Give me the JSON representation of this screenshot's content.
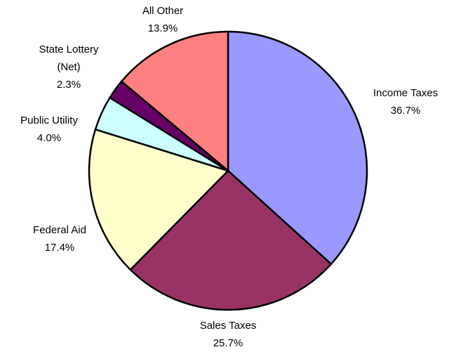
{
  "chart_data": {
    "type": "pie",
    "categories": [
      "Income Taxes",
      "Sales Taxes",
      "Federal Aid",
      "Public Utility",
      "State Lottery (Net)",
      "All Other"
    ],
    "values": [
      36.7,
      25.7,
      17.4,
      4.0,
      2.3,
      13.9
    ],
    "value_labels": [
      "36.7%",
      "25.7%",
      "17.4%",
      "4.0%",
      "2.3%",
      "13.9%"
    ],
    "colors": [
      "#9999ff",
      "#993366",
      "#ffffcc",
      "#ccffff",
      "#660066",
      "#ff8080"
    ]
  }
}
